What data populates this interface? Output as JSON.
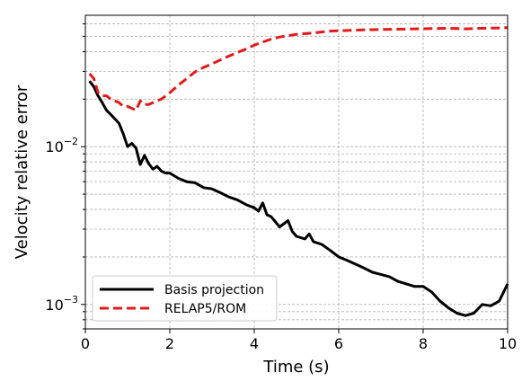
{
  "chart_data": {
    "type": "line",
    "xlabel": "Time (s)",
    "ylabel": "Velocity relative error",
    "xlim": [
      0,
      10
    ],
    "ylim": [
      0.0007,
      0.068
    ],
    "yscale": "log",
    "grid": true,
    "legend_position": "lower-left",
    "x_ticks": [
      {
        "value": 0,
        "label": "0"
      },
      {
        "value": 2,
        "label": "2"
      },
      {
        "value": 4,
        "label": "4"
      },
      {
        "value": 6,
        "label": "6"
      },
      {
        "value": 8,
        "label": "8"
      },
      {
        "value": 10,
        "label": "10"
      }
    ],
    "y_major_ticks": [
      {
        "value": 0.001,
        "base": "10",
        "exp": "−3"
      },
      {
        "value": 0.01,
        "base": "10",
        "exp": "−2"
      }
    ],
    "series": [
      {
        "name": "Basis projection",
        "color": "#000000",
        "style": "solid",
        "x": [
          0.1,
          0.2,
          0.3,
          0.4,
          0.5,
          0.6,
          0.7,
          0.8,
          0.9,
          1.0,
          1.1,
          1.2,
          1.3,
          1.4,
          1.5,
          1.6,
          1.7,
          1.8,
          1.9,
          2.0,
          2.2,
          2.4,
          2.6,
          2.8,
          3.0,
          3.2,
          3.4,
          3.6,
          3.8,
          4.0,
          4.1,
          4.2,
          4.3,
          4.4,
          4.6,
          4.8,
          4.9,
          5.0,
          5.2,
          5.3,
          5.4,
          5.6,
          5.8,
          6.0,
          6.2,
          6.4,
          6.6,
          6.8,
          7.0,
          7.2,
          7.4,
          7.6,
          7.8,
          8.0,
          8.2,
          8.4,
          8.6,
          8.8,
          9.0,
          9.2,
          9.4,
          9.6,
          9.8,
          10.0
        ],
        "y": [
          0.026,
          0.024,
          0.021,
          0.019,
          0.017,
          0.016,
          0.015,
          0.014,
          0.012,
          0.01,
          0.0105,
          0.0098,
          0.0077,
          0.0088,
          0.0078,
          0.0072,
          0.0075,
          0.007,
          0.0068,
          0.0068,
          0.0063,
          0.006,
          0.0059,
          0.0055,
          0.0054,
          0.0051,
          0.0048,
          0.0046,
          0.0043,
          0.0041,
          0.0039,
          0.0044,
          0.0037,
          0.0036,
          0.0031,
          0.0034,
          0.0029,
          0.0027,
          0.0026,
          0.0028,
          0.0025,
          0.0024,
          0.0022,
          0.002,
          0.0019,
          0.0018,
          0.0017,
          0.0016,
          0.00155,
          0.0015,
          0.0014,
          0.00135,
          0.0013,
          0.0013,
          0.0012,
          0.00105,
          0.00095,
          0.00088,
          0.00085,
          0.00088,
          0.001,
          0.00098,
          0.00105,
          0.00135
        ]
      },
      {
        "name": "RELAP5/ROM",
        "color": "#e31a1c",
        "style": "dashed",
        "x": [
          0.1,
          0.2,
          0.3,
          0.4,
          0.5,
          0.6,
          0.8,
          0.9,
          1.0,
          1.2,
          1.3,
          1.4,
          1.5,
          1.6,
          1.8,
          2.0,
          2.2,
          2.4,
          2.6,
          2.8,
          3.0,
          3.2,
          3.4,
          3.6,
          3.8,
          4.0,
          4.2,
          4.4,
          4.6,
          4.8,
          5.0,
          5.4,
          5.8,
          6.2,
          6.6,
          7.0,
          7.4,
          7.8,
          8.2,
          8.6,
          9.0,
          9.4,
          9.8,
          10.0
        ],
        "y": [
          0.029,
          0.027,
          0.022,
          0.021,
          0.021,
          0.02,
          0.019,
          0.018,
          0.018,
          0.017,
          0.0195,
          0.0185,
          0.0185,
          0.019,
          0.02,
          0.022,
          0.0245,
          0.027,
          0.0298,
          0.0318,
          0.0335,
          0.0355,
          0.0375,
          0.0395,
          0.0415,
          0.044,
          0.046,
          0.048,
          0.0495,
          0.0505,
          0.0515,
          0.0525,
          0.054,
          0.0545,
          0.055,
          0.0553,
          0.0555,
          0.0558,
          0.056,
          0.0562,
          0.0558,
          0.0562,
          0.0565,
          0.0568
        ]
      }
    ]
  }
}
